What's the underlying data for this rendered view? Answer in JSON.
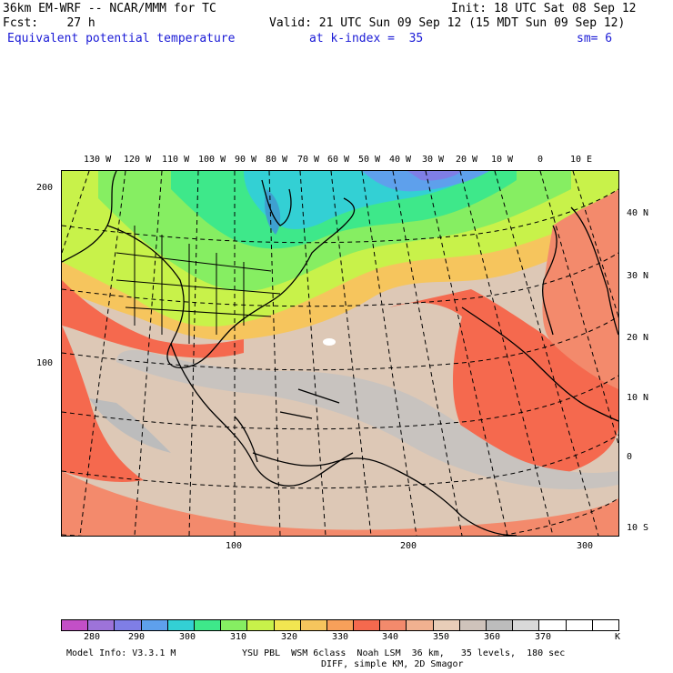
{
  "header": {
    "model": "36km EM-WRF -- NCAR/MMM for TC",
    "init": "Init: 18 UTC Sat 08 Sep 12",
    "fcst": "Fcst:    27 h",
    "valid": "Valid: 21 UTC Sun 09 Sep 12 (15 MDT Sun 09 Sep 12)",
    "field": "Equivalent potential temperature",
    "kindex": "at k-index =  35",
    "sm": "sm= 6"
  },
  "map": {
    "lon_labels": [
      "130 W",
      "120 W",
      "110 W",
      "100 W",
      "90 W",
      "80 W",
      "70 W",
      "60 W",
      "50 W",
      "40 W",
      "30 W",
      "20 W",
      "10 W",
      "0",
      "10 E"
    ],
    "lat_labels": [
      "40 N",
      "30 N",
      "20 N",
      "10 N",
      "0",
      "10 S"
    ],
    "y_grid_labels": [
      "200",
      "100"
    ],
    "x_grid_labels": [
      "100",
      "200",
      "300"
    ]
  },
  "colorbar": {
    "labels": [
      "280",
      "290",
      "300",
      "310",
      "320",
      "330",
      "340",
      "350",
      "360",
      "370"
    ],
    "unit": "K",
    "colors": [
      "#c34fc7",
      "#9d73d9",
      "#7f7ee6",
      "#5ea0ec",
      "#33d0d4",
      "#3ee88a",
      "#86ee62",
      "#c8f24a",
      "#f2e651",
      "#f6c55d",
      "#f7a05a",
      "#f5694e",
      "#f38a6c",
      "#f1b190",
      "#e8cdb8",
      "#cfc3bb",
      "#bcbcbc",
      "#d9d9d9",
      "#ffffff",
      "#ffffff",
      "#ffffff"
    ]
  },
  "footer": {
    "line1a": "Model Info: V3.3.1 M",
    "line1b": "YSU PBL  WSM 6class  Noah LSM  36 km,   35 levels,  180 sec",
    "line2": "DIFF, simple KM, 2D Smagor"
  }
}
